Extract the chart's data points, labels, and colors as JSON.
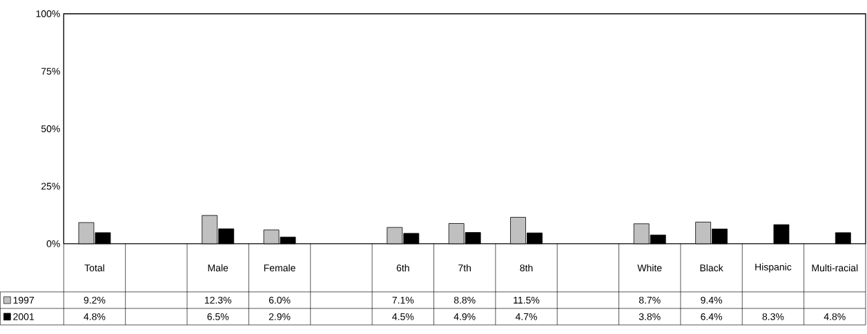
{
  "chart_data": {
    "type": "bar",
    "categories": [
      "Total",
      null,
      "Male",
      "Female",
      null,
      "6th",
      "7th",
      "8th",
      null,
      "White",
      "Black",
      "Hispanic",
      "Multi-racial"
    ],
    "series": [
      {
        "name": "1997",
        "color": "#c0c0c0",
        "values": [
          9.2,
          null,
          12.3,
          6.0,
          null,
          7.1,
          8.8,
          11.5,
          null,
          8.7,
          9.4,
          null,
          null
        ],
        "value_labels": [
          "9.2%",
          null,
          "12.3%",
          "6.0%",
          null,
          "7.1%",
          "8.8%",
          "11.5%",
          null,
          "8.7%",
          "9.4%",
          null,
          null
        ]
      },
      {
        "name": "2001",
        "color": "#000000",
        "values": [
          4.8,
          null,
          6.5,
          2.9,
          null,
          4.5,
          4.9,
          4.7,
          null,
          3.8,
          6.4,
          8.3,
          4.8
        ],
        "value_labels": [
          "4.8%",
          null,
          "6.5%",
          "2.9%",
          null,
          "4.5%",
          "4.9%",
          "4.7%",
          null,
          "3.8%",
          "6.4%",
          "8.3%",
          "4.8%"
        ]
      }
    ],
    "ylim": [
      0,
      100
    ],
    "yticks": [
      {
        "value": 0,
        "label": "0%"
      },
      {
        "value": 25,
        "label": "25%"
      },
      {
        "value": 50,
        "label": "50%"
      },
      {
        "value": 75,
        "label": "75%"
      },
      {
        "value": 100,
        "label": "100%"
      }
    ],
    "grid": false,
    "legend": "bottom left"
  }
}
